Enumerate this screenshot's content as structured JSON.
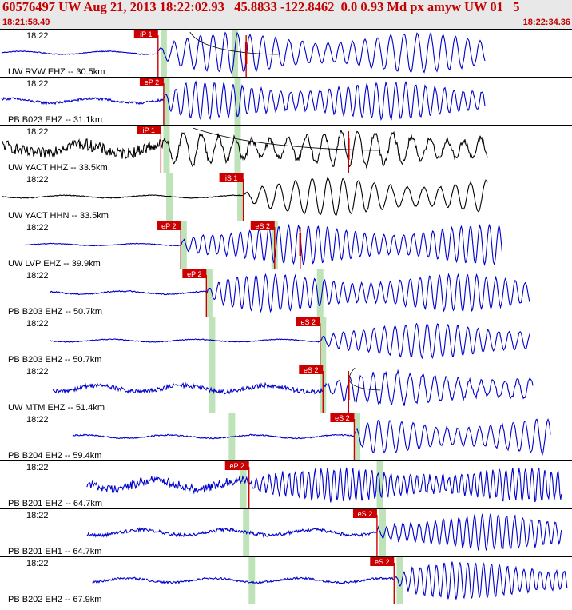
{
  "header": {
    "title": "60576497 UW Aug 21, 2013 18:22:02.93   45.8833 -122.8462  0.0 0.93 Md px amyw UW 01   5",
    "time_start": "18:21:58.49",
    "time_end": "18:22:34.36"
  },
  "colors": {
    "header_bg": "#e8e8e8",
    "header_text": "#c40000",
    "trace_vertical": "#0000cc",
    "trace_horizontal": "#000000",
    "pick": "#cc0000",
    "predicted_window": "#bfe3b8"
  },
  "chart_data": {
    "type": "seismogram",
    "time_window": {
      "start": "18:21:58.49",
      "end": "18:22:34.36"
    },
    "traces": [
      {
        "label": "UW RVW EHZ -- 30.5km",
        "minute_label": "18:22",
        "color": "#0000cc",
        "signal_start": 0.0,
        "signal_end": 0.85,
        "noise": 0.14,
        "signal": 0.9,
        "period": 16,
        "onset": 0.275,
        "pre_onset_gain": 0.15,
        "picks": [
          {
            "label": "iP 1",
            "time": 0.275
          },
          {
            "label": "",
            "time": 0.43
          }
        ],
        "predicted_windows": [
          0.285,
          0.41
        ],
        "amplitude_marker": 0.43,
        "curve": true
      },
      {
        "label": "PB B023 EHZ -- 31.1km",
        "minute_label": "18:22",
        "color": "#0000cc",
        "signal_start": 0.0,
        "signal_end": 0.85,
        "noise": 0.2,
        "signal": 0.85,
        "period": 12,
        "onset": 0.285,
        "pre_onset_gain": 0.3,
        "picks": [
          {
            "label": "eP 2",
            "time": 0.285
          }
        ],
        "predicted_windows": [
          0.29,
          0.415
        ],
        "amplitude_marker": null,
        "curve": false
      },
      {
        "label": "UW YACT HHZ -- 33.5km",
        "minute_label": "18:22",
        "color": "#000000",
        "signal_start": 0.0,
        "signal_end": 0.855,
        "noise": 0.45,
        "signal": 0.8,
        "period": 22,
        "onset": 0.28,
        "pre_onset_gain": 0.6,
        "picks": [
          {
            "label": "iP 1",
            "time": 0.28
          },
          {
            "label": "",
            "time": 0.61
          }
        ],
        "predicted_windows": [
          0.29,
          0.415
        ],
        "amplitude_marker": 0.61,
        "curve": true
      },
      {
        "label": "UW YACT HHN -- 33.5km",
        "minute_label": "18:22",
        "color": "#000000",
        "signal_start": 0.0,
        "signal_end": 0.855,
        "noise": 0.12,
        "signal": 0.85,
        "period": 20,
        "onset": 0.425,
        "pre_onset_gain": 0.15,
        "picks": [
          {
            "label": "iS 1",
            "time": 0.425
          }
        ],
        "predicted_windows": [
          0.295,
          0.42
        ],
        "amplitude_marker": null,
        "curve": false
      },
      {
        "label": "UW LVP EHZ -- 39.9km",
        "minute_label": "18:22",
        "color": "#0000cc",
        "signal_start": 0.04,
        "signal_end": 0.88,
        "noise": 0.1,
        "signal": 0.9,
        "period": 12,
        "onset": 0.315,
        "pre_onset_gain": 0.15,
        "picks": [
          {
            "label": "eP 2",
            "time": 0.315
          },
          {
            "label": "eS 2",
            "time": 0.48
          },
          {
            "label": "",
            "time": 0.525
          }
        ],
        "predicted_windows": [
          0.32,
          0.48
        ],
        "amplitude_marker": 0.525,
        "curve": false
      },
      {
        "label": "PB B203 EHZ -- 50.7km",
        "minute_label": "18:22",
        "color": "#0000cc",
        "signal_start": 0.085,
        "signal_end": 0.93,
        "noise": 0.14,
        "signal": 0.85,
        "period": 12,
        "onset": 0.36,
        "pre_onset_gain": 0.2,
        "picks": [
          {
            "label": "eP 2",
            "time": 0.36
          }
        ],
        "predicted_windows": [
          0.365,
          0.56
        ],
        "amplitude_marker": null,
        "curve": false
      },
      {
        "label": "PB B203 EH2 -- 50.7km",
        "minute_label": "18:22",
        "color": "#0000cc",
        "signal_start": 0.085,
        "signal_end": 0.93,
        "noise": 0.12,
        "signal": 0.8,
        "period": 13,
        "onset": 0.56,
        "pre_onset_gain": 0.15,
        "picks": [
          {
            "label": "eS 2",
            "time": 0.56
          }
        ],
        "predicted_windows": [
          0.37,
          0.565
        ],
        "amplitude_marker": null,
        "curve": false
      },
      {
        "label": "UW MTM EHZ -- 51.4km",
        "minute_label": "18:22",
        "color": "#0000cc",
        "signal_start": 0.09,
        "signal_end": 0.935,
        "noise": 0.3,
        "signal": 0.75,
        "period": 15,
        "onset": 0.565,
        "pre_onset_gain": 0.35,
        "picks": [
          {
            "label": "eS 2",
            "time": 0.565
          },
          {
            "label": "",
            "time": 0.61
          }
        ],
        "predicted_windows": [
          0.37,
          0.565
        ],
        "amplitude_marker": 0.61,
        "curve": true
      },
      {
        "label": "PB B204 EH2 -- 59.4km",
        "minute_label": "18:22",
        "color": "#0000cc",
        "signal_start": 0.125,
        "signal_end": 0.965,
        "noise": 0.15,
        "signal": 0.8,
        "period": 14,
        "onset": 0.62,
        "pre_onset_gain": 0.2,
        "picks": [
          {
            "label": "eS 2",
            "time": 0.62
          }
        ],
        "predicted_windows": [
          0.405,
          0.625
        ],
        "amplitude_marker": null,
        "curve": false
      },
      {
        "label": "PB B201 EHZ -- 64.7km",
        "minute_label": "18:22",
        "color": "#0000cc",
        "signal_start": 0.15,
        "signal_end": 0.985,
        "noise": 0.4,
        "signal": 0.75,
        "period": 8,
        "onset": 0.435,
        "pre_onset_gain": 0.5,
        "picks": [
          {
            "label": "eP 2",
            "time": 0.435
          }
        ],
        "predicted_windows": [
          0.425,
          0.665
        ],
        "amplitude_marker": null,
        "curve": false
      },
      {
        "label": "PB B201 EH1 -- 64.7km",
        "minute_label": "18:22",
        "color": "#0000cc",
        "signal_start": 0.15,
        "signal_end": 0.985,
        "noise": 0.25,
        "signal": 0.8,
        "period": 10,
        "onset": 0.66,
        "pre_onset_gain": 0.3,
        "picks": [
          {
            "label": "eS 2",
            "time": 0.66
          }
        ],
        "predicted_windows": [
          0.43,
          0.67
        ],
        "amplitude_marker": null,
        "curve": false
      },
      {
        "label": "PB B202 EH2 -- 67.9km",
        "minute_label": "18:22",
        "color": "#0000cc",
        "signal_start": 0.16,
        "signal_end": 0.995,
        "noise": 0.2,
        "signal": 0.85,
        "period": 10,
        "onset": 0.69,
        "pre_onset_gain": 0.25,
        "picks": [
          {
            "label": "eS 2",
            "time": 0.69
          }
        ],
        "predicted_windows": [
          0.44,
          0.7
        ],
        "amplitude_marker": null,
        "curve": false
      }
    ]
  }
}
